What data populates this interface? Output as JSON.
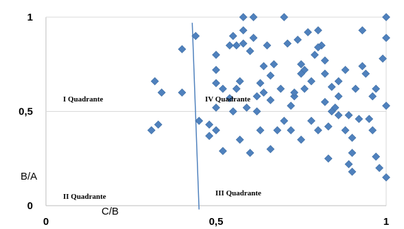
{
  "chart_data": {
    "type": "scatter",
    "title": "",
    "xlabel": "C/B",
    "ylabel": "B/A",
    "xlim": [
      0,
      1
    ],
    "ylim": [
      0,
      1
    ],
    "x_ticks": [
      "0",
      "0,5",
      "1"
    ],
    "y_ticks": [
      "0",
      "0,5",
      "1"
    ],
    "grid": "horizontal",
    "legend": "none",
    "marker": "diamond",
    "marker_color": "#4f81bd",
    "line_color": "#4f81bd",
    "quadrants": {
      "I": "I Quadrante",
      "II": "II Quadrante",
      "III": "III Quadrante",
      "IV": "IV Quadrante"
    },
    "divider_line": {
      "x": [
        0.43,
        0.45
      ],
      "y": [
        0.97,
        -0.02
      ]
    },
    "series": [
      {
        "points": [
          [
            0.31,
            0.4
          ],
          [
            0.33,
            0.43
          ],
          [
            0.32,
            0.66
          ],
          [
            0.34,
            0.6
          ],
          [
            0.4,
            0.6
          ],
          [
            0.4,
            0.83
          ],
          [
            0.44,
            0.9
          ],
          [
            0.45,
            0.45
          ],
          [
            0.48,
            0.43
          ],
          [
            0.5,
            0.4
          ],
          [
            0.5,
            0.52
          ],
          [
            0.5,
            0.65
          ],
          [
            0.5,
            0.72
          ],
          [
            0.5,
            0.8
          ],
          [
            0.52,
            0.29
          ],
          [
            0.54,
            0.85
          ],
          [
            0.55,
            0.9
          ],
          [
            0.56,
            0.85
          ],
          [
            0.55,
            0.5
          ],
          [
            0.56,
            0.62
          ],
          [
            0.57,
            0.66
          ],
          [
            0.57,
            0.35
          ],
          [
            0.58,
            0.86
          ],
          [
            0.58,
            0.93
          ],
          [
            0.58,
            1.0
          ],
          [
            0.59,
            0.52
          ],
          [
            0.6,
            0.82
          ],
          [
            0.61,
            0.89
          ],
          [
            0.61,
            1.0
          ],
          [
            0.62,
            0.58
          ],
          [
            0.63,
            0.65
          ],
          [
            0.63,
            0.4
          ],
          [
            0.6,
            0.28
          ],
          [
            0.64,
            0.6
          ],
          [
            0.65,
            0.85
          ],
          [
            0.66,
            0.56
          ],
          [
            0.66,
            0.3
          ],
          [
            0.68,
            0.4
          ],
          [
            0.67,
            0.75
          ],
          [
            0.69,
            0.62
          ],
          [
            0.7,
            1.0
          ],
          [
            0.71,
            0.86
          ],
          [
            0.72,
            0.53
          ],
          [
            0.72,
            0.4
          ],
          [
            0.73,
            0.58
          ],
          [
            0.74,
            0.88
          ],
          [
            0.75,
            0.75
          ],
          [
            0.75,
            0.35
          ],
          [
            0.76,
            0.72
          ],
          [
            0.76,
            0.62
          ],
          [
            0.78,
            0.66
          ],
          [
            0.78,
            0.45
          ],
          [
            0.79,
            0.8
          ],
          [
            0.8,
            0.93
          ],
          [
            0.8,
            0.4
          ],
          [
            0.81,
            0.85
          ],
          [
            0.82,
            0.7
          ],
          [
            0.82,
            0.55
          ],
          [
            0.83,
            0.42
          ],
          [
            0.83,
            0.25
          ],
          [
            0.84,
            0.63
          ],
          [
            0.85,
            0.52
          ],
          [
            0.86,
            0.48
          ],
          [
            0.86,
            0.58
          ],
          [
            0.88,
            0.72
          ],
          [
            0.88,
            0.4
          ],
          [
            0.89,
            0.48
          ],
          [
            0.89,
            0.22
          ],
          [
            0.9,
            0.36
          ],
          [
            0.9,
            0.28
          ],
          [
            0.91,
            0.62
          ],
          [
            0.92,
            0.46
          ],
          [
            0.93,
            0.74
          ],
          [
            0.93,
            0.93
          ],
          [
            0.94,
            0.7
          ],
          [
            0.96,
            0.58
          ],
          [
            0.96,
            0.4
          ],
          [
            0.97,
            0.62
          ],
          [
            0.98,
            0.2
          ],
          [
            0.99,
            0.78
          ],
          [
            1.0,
            0.15
          ],
          [
            0.95,
            0.46
          ],
          [
            0.82,
            0.77
          ],
          [
            0.8,
            0.84
          ],
          [
            0.9,
            0.18
          ],
          [
            0.73,
            0.6
          ],
          [
            0.77,
            0.92
          ],
          [
            1.0,
            0.89
          ],
          [
            1.0,
            1.0
          ],
          [
            1.0,
            0.53
          ],
          [
            0.97,
            0.26
          ],
          [
            0.84,
            0.5
          ],
          [
            0.86,
            0.66
          ],
          [
            0.7,
            0.45
          ],
          [
            0.66,
            0.69
          ],
          [
            0.62,
            0.5
          ],
          [
            0.54,
            0.57
          ],
          [
            0.52,
            0.62
          ],
          [
            0.48,
            0.37
          ],
          [
            0.64,
            0.74
          ],
          [
            0.75,
            0.7
          ]
        ]
      }
    ]
  }
}
